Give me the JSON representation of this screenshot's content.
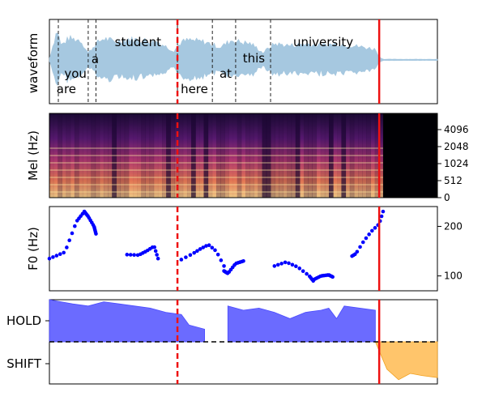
{
  "chart_data": [
    {
      "type": "area",
      "panel": "waveform",
      "ylabel": "waveform",
      "words": [
        {
          "text": "are",
          "x": 0.13
        },
        {
          "text": "you",
          "x": 0.09
        },
        {
          "text": "a",
          "x": 0.16
        },
        {
          "text": "student",
          "x": 0.22
        },
        {
          "text": "here",
          "x": 0.38
        },
        {
          "text": "at",
          "x": 0.42
        },
        {
          "text": "this",
          "x": 0.5
        },
        {
          "text": "university",
          "x": 0.62
        }
      ],
      "word_boundaries": [
        0.023,
        0.1,
        0.12,
        0.33,
        0.42,
        0.48,
        0.57,
        0.85
      ],
      "envelope_x": [
        0.0,
        0.02,
        0.03,
        0.05,
        0.08,
        0.1,
        0.12,
        0.14,
        0.17,
        0.2,
        0.24,
        0.28,
        0.32,
        0.34,
        0.36,
        0.4,
        0.44,
        0.47,
        0.49,
        0.52,
        0.55,
        0.58,
        0.62,
        0.66,
        0.7,
        0.74,
        0.78,
        0.81,
        0.84,
        0.85,
        0.86,
        1.0
      ],
      "envelope_amp": [
        0.05,
        0.85,
        0.4,
        0.6,
        0.55,
        0.2,
        0.45,
        0.6,
        0.5,
        0.58,
        0.55,
        0.5,
        0.25,
        0.5,
        0.55,
        0.5,
        0.35,
        0.55,
        0.5,
        0.45,
        0.2,
        0.45,
        0.4,
        0.45,
        0.4,
        0.45,
        0.4,
        0.35,
        0.3,
        0.1,
        0.02,
        0.02
      ],
      "colors": {
        "waveform": "#a6c8e0"
      }
    },
    {
      "type": "heatmap",
      "panel": "mel",
      "ylabel": "Mel (Hz)",
      "yticks": [
        0,
        512,
        1024,
        2048,
        4096
      ],
      "colormap": "magma",
      "active_until": 0.86
    },
    {
      "type": "scatter",
      "panel": "f0",
      "ylabel": "F0 (Hz)",
      "yticks": [
        100,
        200
      ],
      "ylim": [
        70,
        240
      ],
      "segments": [
        {
          "x": [
            0.0,
            0.04,
            0.07,
            0.09
          ],
          "y": [
            135,
            148,
            210,
            230
          ]
        },
        {
          "x": [
            0.09,
            0.1,
            0.115,
            0.12
          ],
          "y": [
            230,
            220,
            200,
            185
          ]
        },
        {
          "x": [
            0.2,
            0.23,
            0.25,
            0.27,
            0.28
          ],
          "y": [
            143,
            142,
            150,
            160,
            135
          ]
        },
        {
          "x": [
            0.34,
            0.37,
            0.39,
            0.41,
            0.43,
            0.45
          ],
          "y": [
            133,
            145,
            155,
            163,
            150,
            120
          ]
        },
        {
          "x": [
            0.45,
            0.46,
            0.48,
            0.5
          ],
          "y": [
            110,
            105,
            125,
            130
          ]
        },
        {
          "x": [
            0.58,
            0.61,
            0.64,
            0.67,
            0.68
          ],
          "y": [
            120,
            128,
            118,
            100,
            90
          ]
        },
        {
          "x": [
            0.68,
            0.7,
            0.72,
            0.73
          ],
          "y": [
            92,
            100,
            102,
            98
          ]
        },
        {
          "x": [
            0.78,
            0.79,
            0.81,
            0.83,
            0.85,
            0.86
          ],
          "y": [
            140,
            145,
            170,
            190,
            205,
            230
          ]
        }
      ],
      "colors": {
        "points": "#0000ff"
      }
    },
    {
      "type": "area",
      "panel": "turn",
      "yticks": [
        "HOLD",
        "SHIFT"
      ],
      "ylim": [
        -1,
        1
      ],
      "hold_x": [
        0.0,
        0.03,
        0.06,
        0.1,
        0.14,
        0.18,
        0.22,
        0.26,
        0.3,
        0.34,
        0.36,
        0.4,
        0.44,
        0.46,
        0.48,
        0.5,
        0.54,
        0.58,
        0.62,
        0.66,
        0.7,
        0.72,
        0.74,
        0.76,
        0.8,
        0.84
      ],
      "hold_y": [
        1.0,
        0.95,
        0.9,
        0.85,
        0.95,
        0.9,
        0.85,
        0.8,
        0.7,
        0.65,
        0.4,
        0.3,
        0.0,
        0.85,
        0.8,
        0.75,
        0.8,
        0.7,
        0.55,
        0.7,
        0.75,
        0.8,
        0.55,
        0.85,
        0.8,
        0.75
      ],
      "gap_x": [
        0.43,
        0.45
      ],
      "shift_x": [
        0.84,
        0.87,
        0.9,
        0.93,
        0.96,
        1.0
      ],
      "shift_y": [
        0.0,
        -0.65,
        -0.9,
        -0.75,
        -0.8,
        -0.85
      ],
      "colors": {
        "hold": "#6b6bff",
        "shift": "#ffc56b",
        "baseline": "#000000"
      }
    }
  ],
  "markers": {
    "dashed_red_x": 0.33,
    "solid_red_x": 0.85,
    "colors": {
      "red": "#ee1111"
    }
  }
}
